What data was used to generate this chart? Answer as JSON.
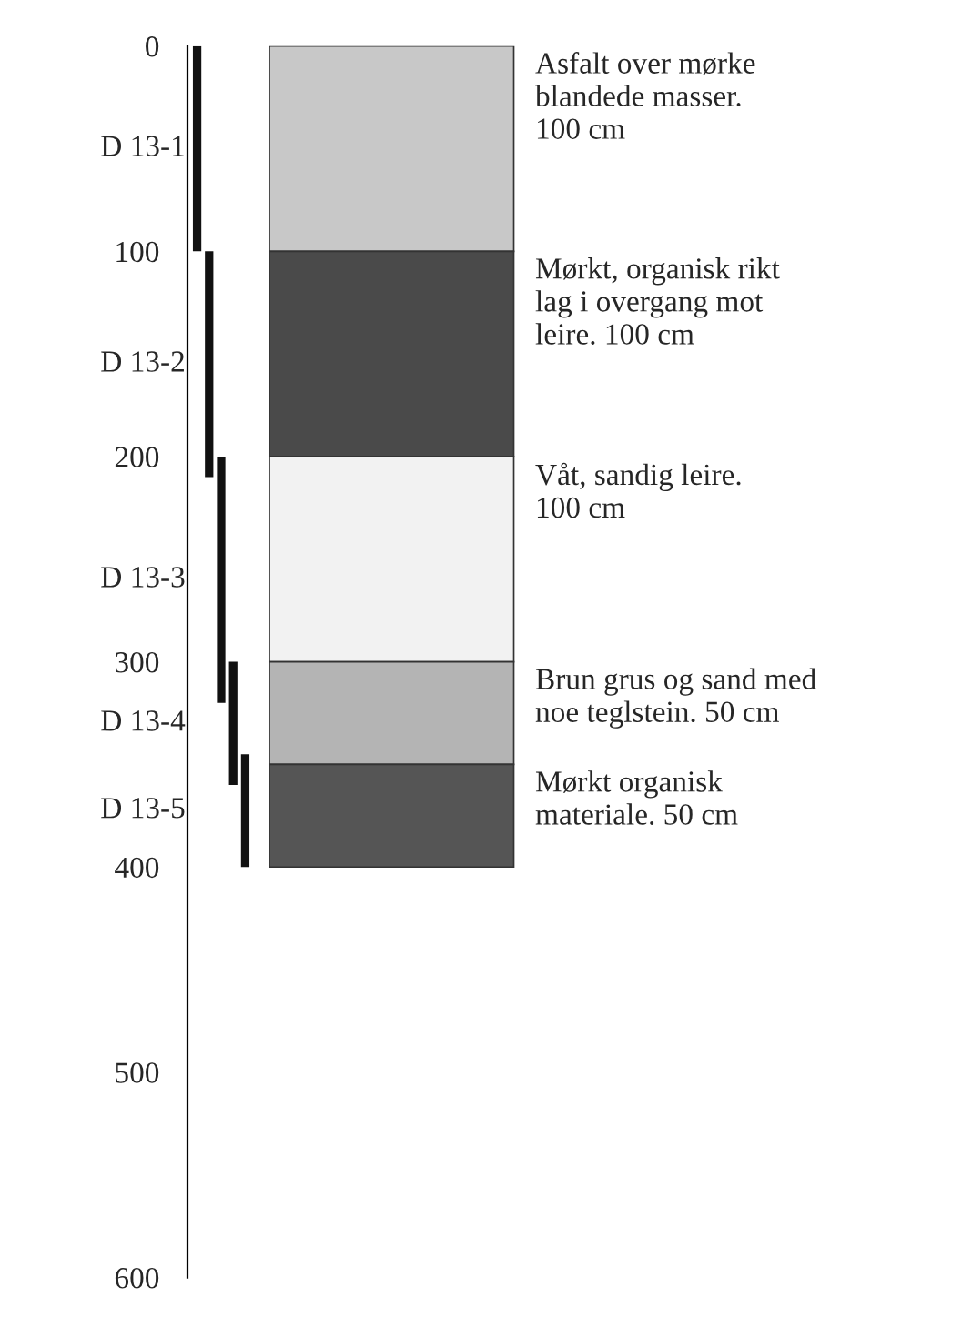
{
  "chart_data": [
    {
      "type": "bar",
      "categories": [
        null,
        null,
        null,
        null,
        null
      ],
      "color": "#111111",
      "values": [
        100,
        110,
        120,
        60,
        55
      ],
      "base": [
        0,
        100,
        200,
        300,
        345
      ],
      "ylim": [
        600,
        0
      ],
      "yticks": [
        0,
        100,
        200,
        300,
        400,
        500,
        600
      ],
      "annotations": [
        "D 13-1",
        "D 13-2",
        "D 13-3",
        "D 13-4",
        "D 13-5"
      ]
    },
    {
      "type": "bar",
      "stacked": true,
      "categories": [
        null
      ],
      "ylim": [
        600,
        0
      ],
      "tick_labels": false,
      "series": [
        {
          "color": "#c8c8c8",
          "values": [
            100
          ]
        },
        {
          "color": "#4a4a4a",
          "values": [
            100
          ]
        },
        {
          "color": "#f2f2f2",
          "values": [
            100
          ]
        },
        {
          "color": "#b4b4b4",
          "values": [
            50
          ]
        },
        {
          "color": "#555555",
          "values": [
            50
          ]
        }
      ],
      "annotations": [
        "Asfalt over mørke\nblandede masser.\n100 cm",
        "Mørkt, organisk rikt\nlag i overgang mot\nleire. 100 cm",
        "Våt, sandig leire.\n100 cm",
        "Brun grus og sand med\nnoe teglstein. 50 cm",
        "Mørkt organisk\nmateriale. 50 cm"
      ]
    }
  ]
}
